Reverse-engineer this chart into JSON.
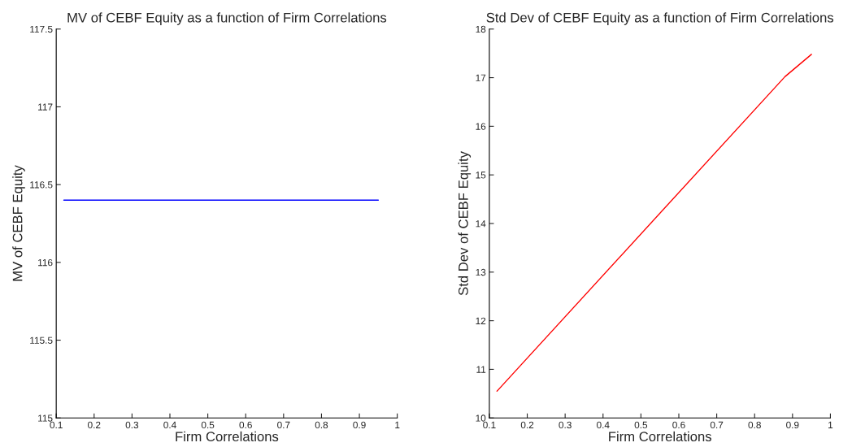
{
  "chart_data": [
    {
      "type": "line",
      "title": "MV of CEBF Equity as a function of Firm Correlations",
      "xlabel": "Firm Correlations",
      "ylabel": "MV of CEBF Equity",
      "x": [
        0.12,
        0.95
      ],
      "series": [
        {
          "color": "#0000ff",
          "values": [
            116.4,
            116.4
          ]
        }
      ],
      "xlim": [
        0.1,
        1
      ],
      "xticks": [
        0.1,
        0.2,
        0.3,
        0.4,
        0.5,
        0.6,
        0.7,
        0.8,
        0.9,
        1
      ],
      "ylim": [
        115,
        117.5
      ],
      "yticks": [
        115,
        115.5,
        116,
        116.5,
        117,
        117.5
      ],
      "grid": false,
      "legend": false
    },
    {
      "type": "line",
      "title": "Std Dev of CEBF Equity as a function of Firm Correlations",
      "xlabel": "Firm Correlations",
      "ylabel": "Std Dev of CEBF Equity",
      "x": [
        0.12,
        0.88,
        0.95
      ],
      "series": [
        {
          "color": "#ff0000",
          "values": [
            10.55,
            17.02,
            17.48
          ]
        }
      ],
      "xlim": [
        0.1,
        1
      ],
      "xticks": [
        0.1,
        0.2,
        0.3,
        0.4,
        0.5,
        0.6,
        0.7,
        0.8,
        0.9,
        1
      ],
      "ylim": [
        10,
        18
      ],
      "yticks": [
        10,
        11,
        12,
        13,
        14,
        15,
        16,
        17,
        18
      ],
      "grid": false,
      "legend": false
    }
  ]
}
